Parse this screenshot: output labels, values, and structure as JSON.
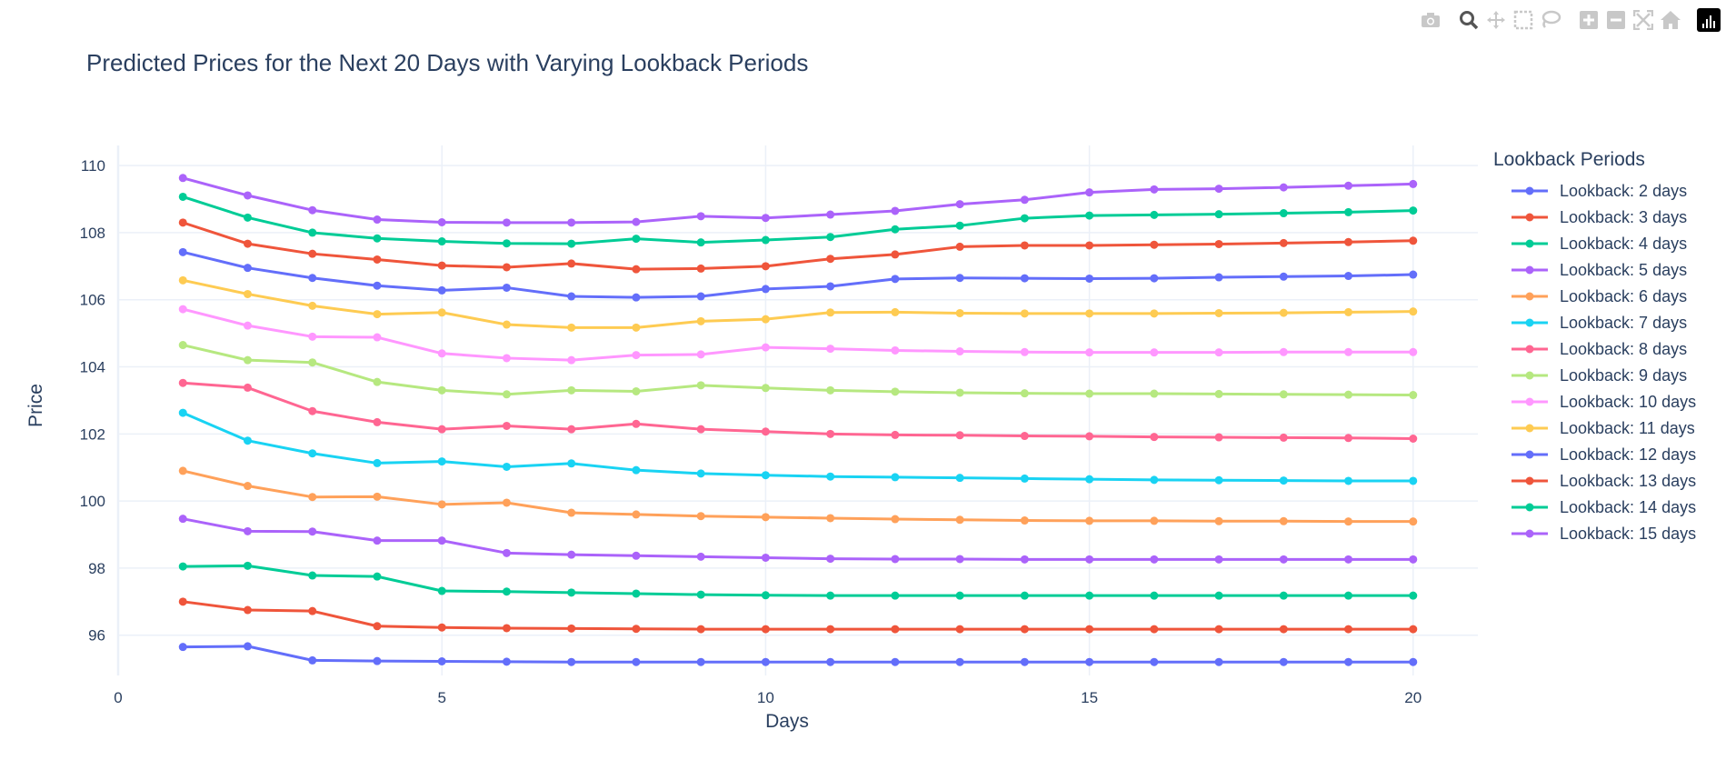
{
  "modebar": {
    "buttons": [
      "camera-icon",
      "zoom-icon",
      "pan-icon",
      "box-select-icon",
      "lasso-select-icon",
      "zoom-in-icon",
      "zoom-out-icon",
      "autoscale-icon",
      "reset-axes-icon",
      "plotly-logo-icon"
    ]
  },
  "colors": [
    "#636efa",
    "#ef553b",
    "#00cc96",
    "#ab63fa",
    "#ffa15a",
    "#19d3f3",
    "#ff6692",
    "#b6e880",
    "#ff97ff",
    "#fecb52"
  ],
  "chart_data": {
    "type": "line",
    "title": "Predicted Prices for the Next 20 Days with Varying Lookback Periods",
    "xlabel": "Days",
    "ylabel": "Price",
    "xlim": [
      0,
      21
    ],
    "ylim": [
      94.8,
      110.6
    ],
    "xticks": [
      0,
      5,
      10,
      15,
      20
    ],
    "yticks": [
      96,
      98,
      100,
      102,
      104,
      106,
      108,
      110
    ],
    "grid": true,
    "legend_title": "Lookback Periods",
    "legend_position": "right",
    "x": [
      1,
      2,
      3,
      4,
      5,
      6,
      7,
      8,
      9,
      10,
      11,
      12,
      13,
      14,
      15,
      16,
      17,
      18,
      19,
      20
    ],
    "series": [
      {
        "name": "Lookback: 2 days",
        "color": "#636efa",
        "values": [
          95.65,
          95.67,
          95.25,
          95.23,
          95.22,
          95.21,
          95.2,
          95.2,
          95.2,
          95.2,
          95.2,
          95.2,
          95.2,
          95.2,
          95.2,
          95.2,
          95.2,
          95.2,
          95.2,
          95.2
        ]
      },
      {
        "name": "Lookback: 3 days",
        "color": "#ef553b",
        "values": [
          97.0,
          96.75,
          96.72,
          96.27,
          96.23,
          96.21,
          96.2,
          96.19,
          96.18,
          96.18,
          96.18,
          96.18,
          96.18,
          96.18,
          96.18,
          96.18,
          96.18,
          96.18,
          96.18,
          96.18
        ]
      },
      {
        "name": "Lookback: 4 days",
        "color": "#00cc96",
        "values": [
          98.05,
          98.07,
          97.78,
          97.75,
          97.32,
          97.3,
          97.27,
          97.24,
          97.21,
          97.19,
          97.18,
          97.18,
          97.18,
          97.18,
          97.18,
          97.18,
          97.18,
          97.18,
          97.18,
          97.18
        ]
      },
      {
        "name": "Lookback: 5 days",
        "color": "#ab63fa",
        "values": [
          99.47,
          99.1,
          99.09,
          98.82,
          98.82,
          98.45,
          98.4,
          98.37,
          98.34,
          98.31,
          98.28,
          98.27,
          98.27,
          98.26,
          98.26,
          98.26,
          98.26,
          98.26,
          98.26,
          98.26
        ]
      },
      {
        "name": "Lookback: 6 days",
        "color": "#ffa15a",
        "values": [
          100.9,
          100.45,
          100.12,
          100.13,
          99.9,
          99.95,
          99.65,
          99.6,
          99.55,
          99.52,
          99.49,
          99.46,
          99.44,
          99.42,
          99.41,
          99.41,
          99.4,
          99.4,
          99.39,
          99.39
        ]
      },
      {
        "name": "Lookback: 7 days",
        "color": "#19d3f3",
        "values": [
          102.63,
          101.8,
          101.42,
          101.13,
          101.18,
          101.02,
          101.12,
          100.92,
          100.82,
          100.77,
          100.73,
          100.71,
          100.69,
          100.67,
          100.65,
          100.63,
          100.62,
          100.61,
          100.6,
          100.6
        ]
      },
      {
        "name": "Lookback: 8 days",
        "color": "#ff6692",
        "values": [
          103.52,
          103.38,
          102.68,
          102.35,
          102.14,
          102.24,
          102.14,
          102.3,
          102.14,
          102.07,
          102.0,
          101.97,
          101.96,
          101.94,
          101.93,
          101.91,
          101.9,
          101.89,
          101.88,
          101.86
        ]
      },
      {
        "name": "Lookback: 9 days",
        "color": "#b6e880",
        "values": [
          104.65,
          104.2,
          104.13,
          103.55,
          103.3,
          103.18,
          103.3,
          103.27,
          103.45,
          103.37,
          103.3,
          103.26,
          103.23,
          103.21,
          103.2,
          103.2,
          103.19,
          103.18,
          103.17,
          103.16
        ]
      },
      {
        "name": "Lookback: 10 days",
        "color": "#ff97ff",
        "values": [
          105.72,
          105.23,
          104.9,
          104.88,
          104.4,
          104.26,
          104.2,
          104.35,
          104.37,
          104.58,
          104.54,
          104.49,
          104.46,
          104.44,
          104.43,
          104.43,
          104.43,
          104.44,
          104.44,
          104.44
        ]
      },
      {
        "name": "Lookback: 11 days",
        "color": "#fecb52",
        "values": [
          106.58,
          106.17,
          105.82,
          105.57,
          105.62,
          105.26,
          105.17,
          105.17,
          105.36,
          105.42,
          105.62,
          105.63,
          105.6,
          105.59,
          105.59,
          105.59,
          105.6,
          105.61,
          105.63,
          105.65
        ]
      },
      {
        "name": "Lookback: 12 days",
        "color": "#636efa",
        "values": [
          107.42,
          106.95,
          106.65,
          106.42,
          106.28,
          106.36,
          106.1,
          106.07,
          106.1,
          106.32,
          106.4,
          106.62,
          106.65,
          106.64,
          106.63,
          106.64,
          106.67,
          106.69,
          106.71,
          106.75
        ]
      },
      {
        "name": "Lookback: 13 days",
        "color": "#ef553b",
        "values": [
          108.3,
          107.67,
          107.37,
          107.2,
          107.02,
          106.97,
          107.08,
          106.91,
          106.93,
          107.0,
          107.22,
          107.35,
          107.58,
          107.62,
          107.62,
          107.64,
          107.66,
          107.69,
          107.72,
          107.76
        ]
      },
      {
        "name": "Lookback: 14 days",
        "color": "#00cc96",
        "values": [
          109.07,
          108.45,
          108.0,
          107.83,
          107.74,
          107.68,
          107.67,
          107.82,
          107.71,
          107.78,
          107.87,
          108.1,
          108.21,
          108.43,
          108.51,
          108.53,
          108.55,
          108.58,
          108.61,
          108.66
        ]
      },
      {
        "name": "Lookback: 15 days",
        "color": "#ab63fa",
        "values": [
          109.63,
          109.11,
          108.67,
          108.39,
          108.31,
          108.3,
          108.3,
          108.32,
          108.49,
          108.44,
          108.54,
          108.65,
          108.85,
          108.98,
          109.2,
          109.29,
          109.31,
          109.35,
          109.4,
          109.45
        ]
      }
    ]
  }
}
